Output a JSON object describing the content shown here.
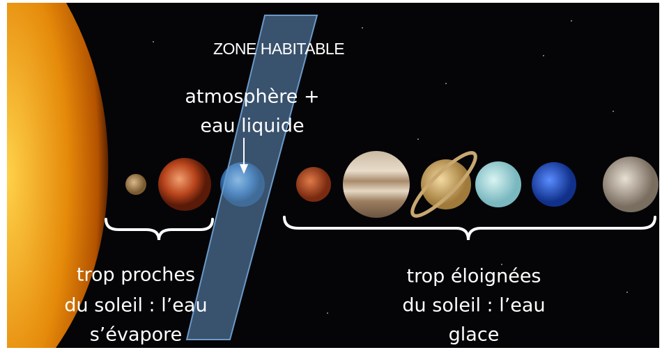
{
  "zone": {
    "title": "ZONE HABITABLE",
    "note": [
      "atmosphère +",
      "eau liquide"
    ]
  },
  "inner": {
    "lines": [
      "trop proches",
      "du soleil : l’eau",
      "s’évapore"
    ]
  },
  "outer": {
    "lines": [
      "trop éloignées",
      "du soleil : l’eau",
      "glace"
    ]
  }
}
